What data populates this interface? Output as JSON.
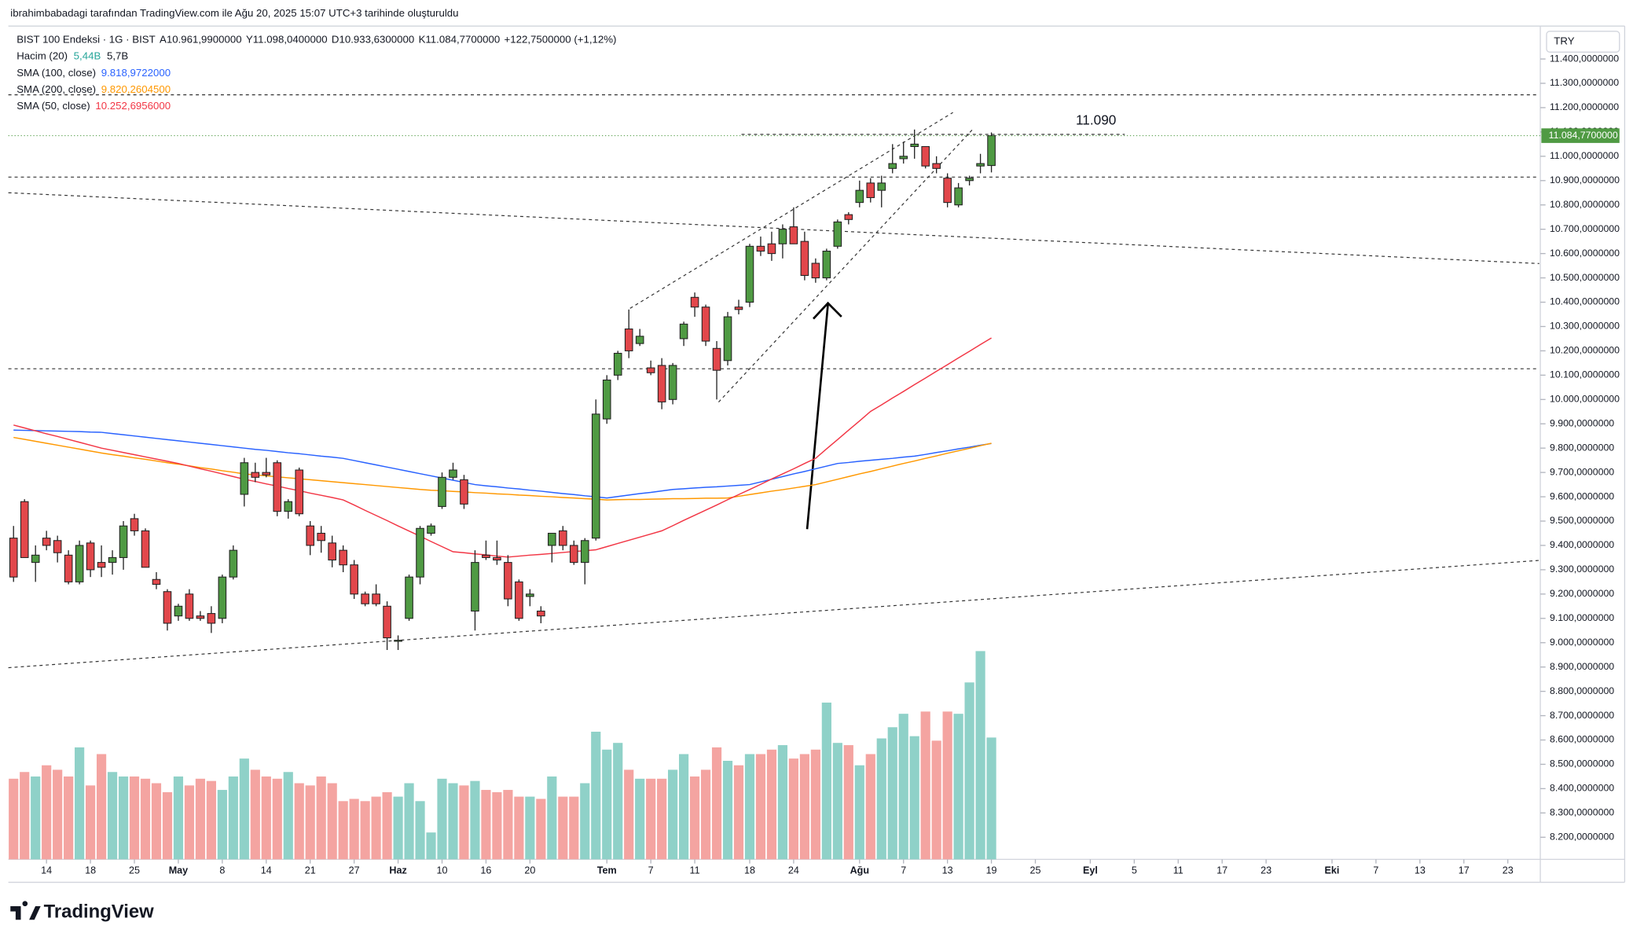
{
  "header": {
    "credit": "ibrahimbabadagi tarafından TradingView.com ile Ağu 20, 2025 15:07 UTC+3 tarihinde oluşturuldu"
  },
  "chart_data": {
    "type": "candlestick",
    "legend": {
      "symbol": "BIST 100 Endeksi · 1G · BIST",
      "ohlc": [
        {
          "key": "A",
          "value": "10.961,9900000"
        },
        {
          "key": "Y",
          "value": "11.098,0400000"
        },
        {
          "key": "D",
          "value": "10.933,6300000"
        },
        {
          "key": "K",
          "value": "11.084,7700000"
        }
      ],
      "change": "+122,7500000 (+1,12%)",
      "volume_name": "Hacim (20)",
      "volume_value": "5,44B",
      "volume_avg": "5,7B"
    },
    "open": [
      9430,
      9580,
      9330,
      9430,
      9420,
      9360,
      9250,
      9410,
      9330,
      9330,
      9350,
      9510,
      9460,
      9260,
      9210,
      9110,
      9200,
      9110,
      9120,
      9100,
      9270,
      9610,
      9700,
      9700,
      9740,
      9540,
      9710,
      9480,
      9450,
      9410,
      9380,
      9320,
      9200,
      9200,
      9150,
      9010,
      9100,
      9270,
      9450,
      9560,
      9680,
      9670,
      9130,
      9360,
      9350,
      9330,
      9250,
      9190,
      9130,
      9400,
      9460,
      9400,
      9330,
      9430,
      9920,
      10100,
      10290,
      10230,
      10130,
      10140,
      10000,
      10250,
      10420,
      10380,
      10210,
      10160,
      10380,
      10400,
      10630,
      10640,
      10640,
      10710,
      10650,
      10560,
      10500,
      10630,
      10760,
      10810,
      10890,
      10860,
      10950,
      10990,
      11040,
      11040,
      10970,
      10910,
      10800,
      10900,
      10960,
      10961.99
    ],
    "high": [
      9480,
      9590,
      9400,
      9460,
      9440,
      9380,
      9420,
      9420,
      9400,
      9380,
      9500,
      9530,
      9470,
      9290,
      9220,
      9160,
      9220,
      9130,
      9150,
      9280,
      9400,
      9760,
      9740,
      9760,
      9750,
      9590,
      9720,
      9500,
      9480,
      9440,
      9400,
      9340,
      9210,
      9240,
      9170,
      9030,
      9280,
      9480,
      9490,
      9700,
      9740,
      9690,
      9380,
      9420,
      9420,
      9360,
      9260,
      9220,
      9150,
      9450,
      9480,
      9420,
      9430,
      10000,
      10100,
      10200,
      10370,
      10290,
      10160,
      10170,
      10150,
      10320,
      10440,
      10390,
      10240,
      10360,
      10410,
      10640,
      10670,
      10690,
      10720,
      10790,
      10690,
      10580,
      10620,
      10740,
      10770,
      10900,
      10910,
      10920,
      11050,
      11060,
      11110,
      11040,
      11000,
      10930,
      10890,
      10920,
      11010,
      11098.04
    ],
    "low": [
      9250,
      9350,
      9250,
      9380,
      9330,
      9240,
      9240,
      9270,
      9270,
      9280,
      9300,
      9440,
      9310,
      9220,
      9050,
      9090,
      9090,
      9090,
      9040,
      9080,
      9260,
      9560,
      9660,
      9680,
      9520,
      9510,
      9520,
      9360,
      9370,
      9310,
      9290,
      9180,
      9150,
      9150,
      8970,
      8970,
      9090,
      9240,
      9440,
      9550,
      9670,
      9550,
      9050,
      9340,
      9320,
      9150,
      9090,
      9150,
      9080,
      9330,
      9380,
      9320,
      9240,
      9420,
      9900,
      10080,
      10170,
      10220,
      10100,
      9960,
      9980,
      10220,
      10340,
      10220,
      10000,
      10140,
      10350,
      10380,
      10590,
      10570,
      10580,
      10640,
      10490,
      10480,
      10490,
      10620,
      10720,
      10790,
      10810,
      10790,
      10930,
      10970,
      10990,
      10950,
      10930,
      10790,
      10790,
      10880,
      10930,
      10933.63
    ],
    "close": [
      9270,
      9350,
      9360,
      9400,
      9370,
      9250,
      9400,
      9300,
      9310,
      9350,
      9480,
      9460,
      9310,
      9240,
      9080,
      9150,
      9100,
      9100,
      9080,
      9270,
      9380,
      9740,
      9680,
      9690,
      9540,
      9580,
      9530,
      9400,
      9420,
      9340,
      9320,
      9200,
      9160,
      9160,
      9020,
      9010,
      9270,
      9470,
      9480,
      9680,
      9710,
      9570,
      9330,
      9350,
      9340,
      9180,
      9100,
      9200,
      9110,
      9450,
      9400,
      9330,
      9420,
      9940,
      10080,
      10190,
      10200,
      10260,
      10110,
      9990,
      10140,
      10310,
      10380,
      10240,
      10120,
      10340,
      10370,
      10630,
      10610,
      10600,
      10700,
      10640,
      10510,
      10500,
      10610,
      10730,
      10740,
      10860,
      10830,
      10890,
      10970,
      11000,
      11050,
      10960,
      10950,
      10810,
      10870,
      10910,
      10970,
      11084.77
    ],
    "volume": [
      3.6,
      3.9,
      3.7,
      4.2,
      4.0,
      3.7,
      5.0,
      3.3,
      4.7,
      3.9,
      3.7,
      3.7,
      3.6,
      3.4,
      3.0,
      3.7,
      3.3,
      3.6,
      3.5,
      3.1,
      3.7,
      4.5,
      4.0,
      3.7,
      3.6,
      3.9,
      3.4,
      3.3,
      3.7,
      3.4,
      2.6,
      2.7,
      2.6,
      2.8,
      3.0,
      2.8,
      3.4,
      2.6,
      1.2,
      3.6,
      3.4,
      3.3,
      3.5,
      3.1,
      3.0,
      3.1,
      2.8,
      2.8,
      2.7,
      3.7,
      2.8,
      2.8,
      3.4,
      5.7,
      4.9,
      5.2,
      4.0,
      3.6,
      3.6,
      3.6,
      4.0,
      4.7,
      3.7,
      4.0,
      5.0,
      4.4,
      4.2,
      4.7,
      4.7,
      4.9,
      5.1,
      4.5,
      4.7,
      4.9,
      7.0,
      5.2,
      5.1,
      4.2,
      4.7,
      5.4,
      5.9,
      6.5,
      5.5,
      6.6,
      5.3,
      6.6,
      6.5,
      7.9,
      9.3,
      5.44
    ],
    "up_color": "#4f9a43",
    "down_color": "#e2474b",
    "volume_up_color": "#8fd1c8",
    "volume_down_color": "#f4a4a1",
    "series": [
      {
        "name": "SMA (100, close)",
        "value_label": "9.818,9722000",
        "color": "#2962ff",
        "values": [
          9874,
          9873,
          9872,
          9871,
          9870,
          9869,
          9868,
          9866,
          9865,
          9860,
          9855,
          9850,
          9845,
          9840,
          9835,
          9830,
          9825,
          9820,
          9815,
          9810,
          9805,
          9800,
          9795,
          9791,
          9786,
          9781,
          9777,
          9772,
          9767,
          9763,
          9758,
          9749,
          9740,
          9731,
          9722,
          9713,
          9704,
          9695,
          9686,
          9677,
          9668,
          9659,
          9650,
          9645,
          9641,
          9636,
          9632,
          9627,
          9623,
          9618,
          9613,
          9609,
          9604,
          9600,
          9595,
          9601,
          9607,
          9613,
          9618,
          9624,
          9630,
          9633,
          9636,
          9639,
          9641,
          9644,
          9647,
          9650,
          9661,
          9672,
          9683,
          9694,
          9704,
          9715,
          9726,
          9737,
          9741,
          9746,
          9750,
          9754,
          9758,
          9763,
          9767,
          9774,
          9782,
          9789,
          9797,
          9804,
          9812,
          9819
        ]
      },
      {
        "name": "SMA (200, close)",
        "value_label": "9.820,2604500",
        "color": "#ff9800",
        "values": [
          9844,
          9836,
          9828,
          9820,
          9812,
          9804,
          9796,
          9788,
          9780,
          9773,
          9767,
          9760,
          9754,
          9747,
          9740,
          9734,
          9727,
          9720,
          9714,
          9707,
          9701,
          9694,
          9690,
          9686,
          9682,
          9678,
          9674,
          9670,
          9666,
          9662,
          9658,
          9654,
          9650,
          9646,
          9642,
          9638,
          9634,
          9630,
          9627,
          9625,
          9622,
          9620,
          9617,
          9615,
          9612,
          9610,
          9607,
          9605,
          9602,
          9600,
          9597,
          9595,
          9592,
          9590,
          9587,
          9588,
          9589,
          9589,
          9590,
          9591,
          9592,
          9592,
          9593,
          9594,
          9594,
          9595,
          9602,
          9609,
          9616,
          9623,
          9629,
          9636,
          9643,
          9650,
          9661,
          9672,
          9683,
          9694,
          9704,
          9715,
          9726,
          9737,
          9747,
          9758,
          9768,
          9779,
          9789,
          9799,
          9810,
          9820
        ]
      },
      {
        "name": "SMA (50, close)",
        "value_label": "10.252,6956000",
        "color": "#f23645",
        "values": [
          9895,
          9883,
          9871,
          9859,
          9848,
          9836,
          9824,
          9812,
          9800,
          9791,
          9782,
          9773,
          9764,
          9755,
          9746,
          9737,
          9726,
          9715,
          9705,
          9694,
          9683,
          9672,
          9663,
          9653,
          9644,
          9634,
          9625,
          9615,
          9606,
          9597,
          9587,
          9566,
          9544,
          9523,
          9502,
          9480,
          9459,
          9438,
          9416,
          9395,
          9374,
          9370,
          9365,
          9361,
          9356,
          9352,
          9356,
          9360,
          9363,
          9367,
          9371,
          9375,
          9378,
          9382,
          9395,
          9408,
          9421,
          9434,
          9447,
          9460,
          9481,
          9503,
          9524,
          9545,
          9566,
          9588,
          9609,
          9630,
          9651,
          9673,
          9694,
          9715,
          9737,
          9758,
          9797,
          9835,
          9874,
          9912,
          9951,
          9978,
          10006,
          10033,
          10061,
          10088,
          10116,
          10143,
          10171,
          10198,
          10226,
          10253
        ]
      }
    ],
    "ylim": [
      8100,
      11500
    ],
    "yticks": [
      {
        "value": 11400,
        "label": "11.400,0000000"
      },
      {
        "value": 11300,
        "label": "11.300,0000000"
      },
      {
        "value": 11200,
        "label": "11.200,0000000"
      },
      {
        "value": 11100,
        "label": "11.100,0000000"
      },
      {
        "value": 11000,
        "label": "11.000,0000000"
      },
      {
        "value": 10900,
        "label": "10.900,0000000"
      },
      {
        "value": 10800,
        "label": "10.800,0000000"
      },
      {
        "value": 10700,
        "label": "10.700,0000000"
      },
      {
        "value": 10600,
        "label": "10.600,0000000"
      },
      {
        "value": 10500,
        "label": "10.500,0000000"
      },
      {
        "value": 10400,
        "label": "10.400,0000000"
      },
      {
        "value": 10300,
        "label": "10.300,0000000"
      },
      {
        "value": 10200,
        "label": "10.200,0000000"
      },
      {
        "value": 10100,
        "label": "10.100,0000000"
      },
      {
        "value": 10000,
        "label": "10.000,0000000"
      },
      {
        "value": 9900,
        "label": "9.900,0000000"
      },
      {
        "value": 9800,
        "label": "9.800,0000000"
      },
      {
        "value": 9700,
        "label": "9.700,0000000"
      },
      {
        "value": 9600,
        "label": "9.600,0000000"
      },
      {
        "value": 9500,
        "label": "9.500,0000000"
      },
      {
        "value": 9400,
        "label": "9.400,0000000"
      },
      {
        "value": 9300,
        "label": "9.300,0000000"
      },
      {
        "value": 9200,
        "label": "9.200,0000000"
      },
      {
        "value": 9100,
        "label": "9.100,0000000"
      },
      {
        "value": 9000,
        "label": "9.000,0000000"
      },
      {
        "value": 8900,
        "label": "8.900,0000000"
      },
      {
        "value": 8800,
        "label": "8.800,0000000"
      },
      {
        "value": 8700,
        "label": "8.700,0000000"
      },
      {
        "value": 8600,
        "label": "8.600,0000000"
      },
      {
        "value": 8500,
        "label": "8.500,0000000"
      },
      {
        "value": 8400,
        "label": "8.400,0000000"
      },
      {
        "value": 8300,
        "label": "8.300,0000000"
      },
      {
        "value": 8200,
        "label": "8.200,0000000"
      }
    ],
    "xticks": [
      {
        "value": 3,
        "label": "14"
      },
      {
        "value": 7,
        "label": "18"
      },
      {
        "value": 11,
        "label": "25"
      },
      {
        "value": 15,
        "label": "May"
      },
      {
        "value": 19,
        "label": "8"
      },
      {
        "value": 23,
        "label": "14"
      },
      {
        "value": 27,
        "label": "21"
      },
      {
        "value": 31,
        "label": "27"
      },
      {
        "value": 35,
        "label": "Haz"
      },
      {
        "value": 39,
        "label": "10"
      },
      {
        "value": 43,
        "label": "16"
      },
      {
        "value": 47,
        "label": "20"
      },
      {
        "value": 54,
        "label": "Tem"
      },
      {
        "value": 58,
        "label": "7"
      },
      {
        "value": 62,
        "label": "11"
      },
      {
        "value": 67,
        "label": "18"
      },
      {
        "value": 71,
        "label": "24"
      },
      {
        "value": 77,
        "label": "Ağu"
      },
      {
        "value": 81,
        "label": "7"
      },
      {
        "value": 85,
        "label": "13"
      },
      {
        "value": 89,
        "label": "19"
      },
      {
        "value": 93,
        "label": "25"
      },
      {
        "value": 98,
        "label": "Eyl"
      },
      {
        "value": 102,
        "label": "5"
      },
      {
        "value": 106,
        "label": "11"
      },
      {
        "value": 110,
        "label": "17"
      },
      {
        "value": 114,
        "label": "23"
      },
      {
        "value": 120,
        "label": "Eki"
      },
      {
        "value": 124,
        "label": "7"
      },
      {
        "value": 128,
        "label": "13"
      },
      {
        "value": 132,
        "label": "17"
      },
      {
        "value": 136,
        "label": "23"
      }
    ],
    "currency": "TRY",
    "last_price": {
      "value": 11084.77,
      "label": "11.084,7700000"
    },
    "annotation": {
      "value": 11090,
      "label": "11.090"
    }
  },
  "footer": {
    "logo": "TradingView"
  }
}
